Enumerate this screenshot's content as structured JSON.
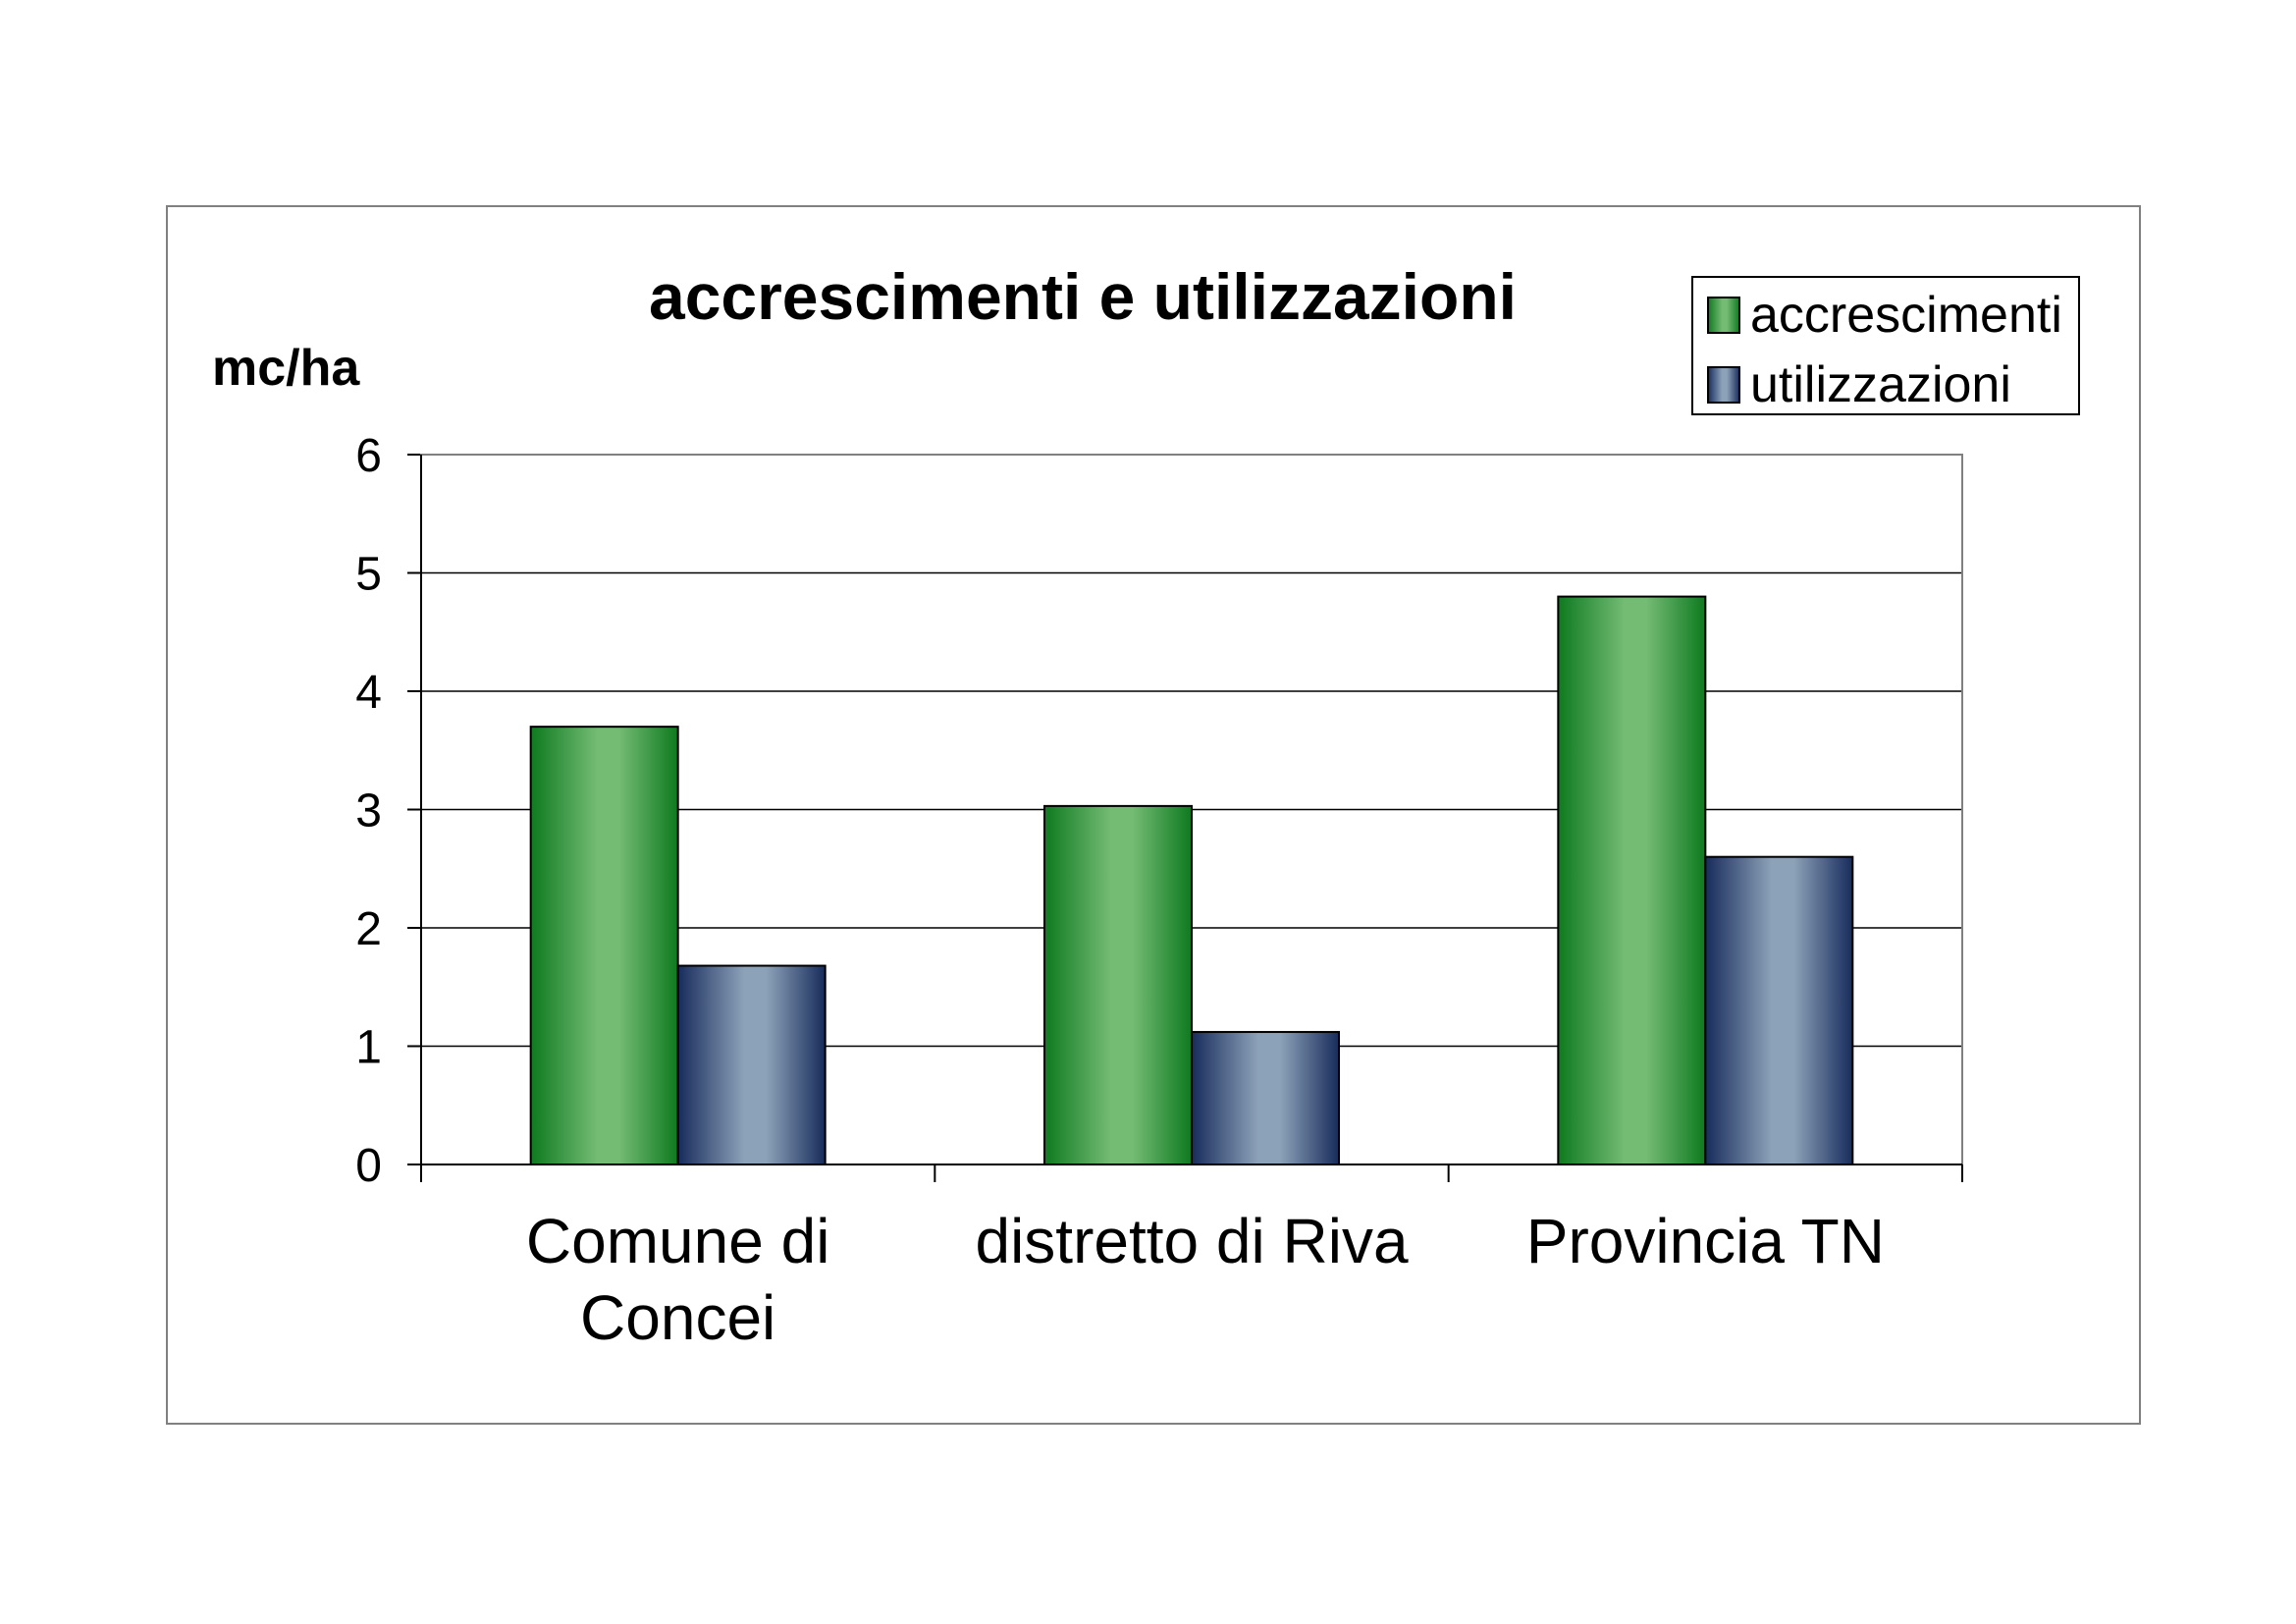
{
  "chart_data": {
    "type": "bar",
    "title": "accrescimenti e utilizzazioni",
    "ylabel": "mc/ha",
    "xlabel": "",
    "categories": [
      [
        "Comune di",
        "Concei"
      ],
      [
        "distretto di Riva"
      ],
      [
        "Provincia TN"
      ]
    ],
    "series": [
      {
        "name": "accrescimenti",
        "values": [
          3.7,
          3.03,
          4.8
        ]
      },
      {
        "name": "utilizzazioni",
        "values": [
          1.68,
          1.12,
          2.6
        ]
      }
    ],
    "ylim": [
      0,
      6
    ],
    "yticks": [
      "0",
      "1",
      "2",
      "3",
      "4",
      "5",
      "6"
    ],
    "grid": true,
    "legend_position": "top-right"
  },
  "colors": {
    "series": [
      {
        "edge": "#0e7a1f",
        "center": "#74bb74"
      },
      {
        "edge": "#182c5c",
        "center": "#8ca2b8"
      }
    ]
  }
}
